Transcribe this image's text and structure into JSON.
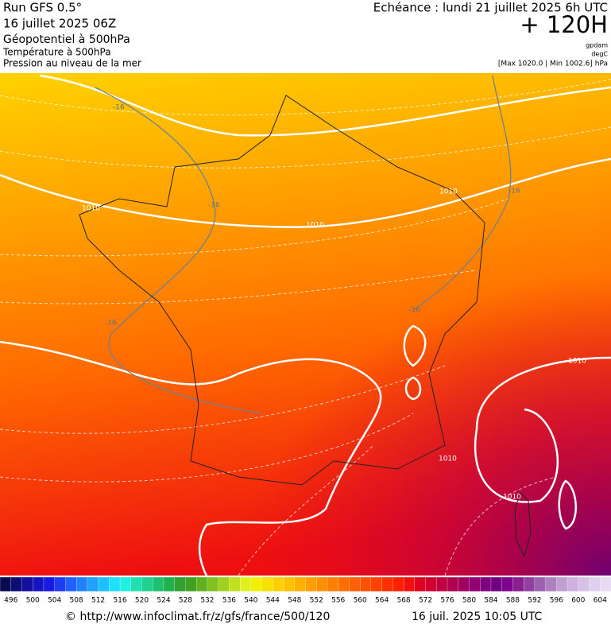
{
  "header": {
    "run": "Run GFS 0.5°",
    "date": "16 juillet 2025 06Z",
    "layers": [
      "Géopotentiel à 500hPa",
      "Température à 500hPa",
      "Pression au niveau de la mer"
    ],
    "echeance": "Echéance : lundi 21 juillet 2025 6h UTC",
    "horizon": "+ 120H",
    "units": [
      "gpdam",
      "degC"
    ],
    "range": "[Max 1020.0 | Min 1002.6] hPa"
  },
  "map": {
    "isobar_labels": [
      "1010",
      "1010",
      "1010",
      "1010",
      "1010",
      "1010"
    ],
    "isotherm_labels": [
      "-16",
      "-16",
      "-16",
      "-16",
      "-16"
    ]
  },
  "colorbar": {
    "labels": [
      496,
      500,
      504,
      508,
      512,
      516,
      520,
      524,
      528,
      532,
      536,
      540,
      544,
      548,
      552,
      556,
      560,
      564,
      568,
      572,
      576,
      580,
      584,
      588,
      592,
      596,
      600,
      604
    ],
    "colors": [
      "#0a0a50",
      "#0d0d78",
      "#10109c",
      "#1414c0",
      "#1a1ae0",
      "#1e3cf0",
      "#2060ff",
      "#2080ff",
      "#20a0ff",
      "#20c0ff",
      "#20e0ff",
      "#20f0e0",
      "#20e0b0",
      "#20d090",
      "#20c070",
      "#20b050",
      "#30a030",
      "#40a020",
      "#60b020",
      "#80c020",
      "#a0d020",
      "#c0e020",
      "#e0f020",
      "#f0f000",
      "#f8e000",
      "#ffd000",
      "#ffc000",
      "#ffb000",
      "#ffa000",
      "#ff9000",
      "#ff8000",
      "#ff7000",
      "#ff6000",
      "#ff5000",
      "#ff4000",
      "#ff3000",
      "#ff2000",
      "#f01010",
      "#e00020",
      "#d00030",
      "#c00040",
      "#b00050",
      "#a00060",
      "#900070",
      "#800080",
      "#700080",
      "#800090",
      "#8a2090",
      "#9040a0",
      "#a060b0",
      "#b080c0",
      "#c0a0d0",
      "#d0b0e0",
      "#d8c0e8",
      "#e0d0f0",
      "#e8dcf4"
    ]
  },
  "footer": {
    "url": "© http://www.infoclimat.fr/z/gfs/france/500/120",
    "timestamp": "16 juil. 2025 10:05 UTC"
  }
}
